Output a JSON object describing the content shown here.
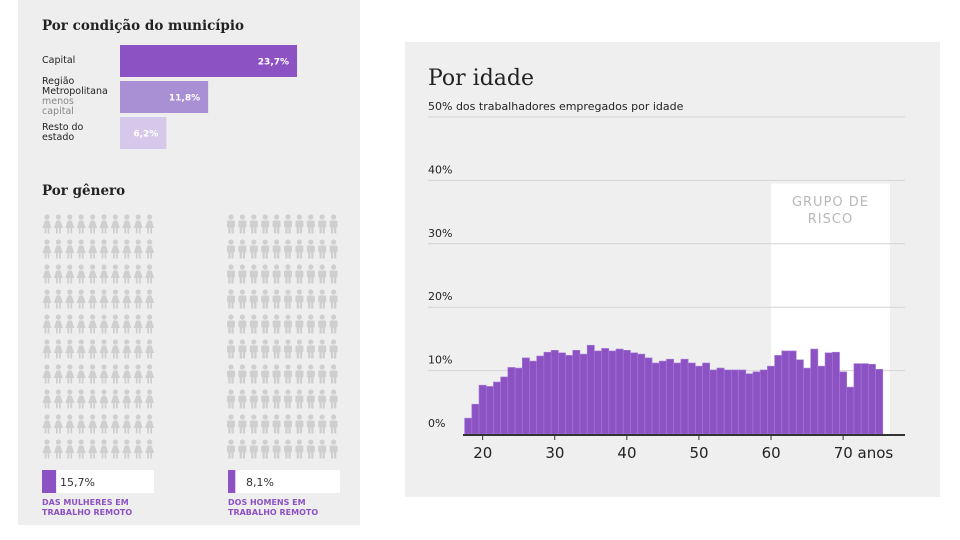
{
  "chart_data": [
    {
      "type": "hbar",
      "title": "Por condição do município",
      "categories": [
        "Capital",
        "Região Metropolitana",
        "Resto do estado"
      ],
      "category_sublabels": [
        null,
        "menos capital",
        null
      ],
      "values": [
        23.7,
        11.8,
        6.2
      ],
      "value_labels": [
        "23,7%",
        "11,8%",
        "6,2%"
      ],
      "colors": [
        "#8c52c4",
        "#a98fd3",
        "#d6c8ea"
      ]
    },
    {
      "type": "pictogram",
      "title": "Por gênero",
      "color": "#8c52c4",
      "empty_color": "#cfcfcf",
      "series": [
        {
          "name": "DAS MULHERES EM TRABALHO REMOTO",
          "icon": "female",
          "values": [
            15.7
          ],
          "value_labels": [
            "15,7%"
          ]
        },
        {
          "name": "DOS HOMENS EM TRABALHO REMOTO",
          "icon": "male",
          "values": [
            8.1
          ],
          "value_labels": [
            "8,1%"
          ]
        }
      ]
    },
    {
      "type": "histogram",
      "title": "Por idade",
      "subtitle": "50% dos trabalhadores empregados por idade",
      "color": "#8c52c4",
      "x": [
        18,
        19,
        20,
        21,
        22,
        23,
        24,
        25,
        26,
        27,
        28,
        29,
        30,
        31,
        32,
        33,
        34,
        35,
        36,
        37,
        38,
        39,
        40,
        41,
        42,
        43,
        44,
        45,
        46,
        47,
        48,
        49,
        50,
        51,
        52,
        53,
        54,
        55,
        56,
        57,
        58,
        59,
        60,
        61,
        62,
        63,
        64,
        65,
        66,
        67,
        68,
        69,
        70,
        71,
        72,
        73,
        74,
        75
      ],
      "values": [
        2.5,
        4.7,
        7.7,
        7.5,
        8.2,
        9.0,
        10.5,
        10.4,
        12.0,
        11.5,
        12.3,
        12.9,
        13.2,
        12.8,
        12.4,
        13.2,
        12.6,
        14.0,
        13.1,
        13.5,
        13.1,
        13.4,
        13.2,
        12.8,
        12.6,
        12.0,
        11.2,
        11.5,
        11.8,
        11.2,
        11.8,
        11.2,
        10.7,
        11.2,
        10.1,
        10.4,
        10.1,
        10.1,
        10.1,
        9.5,
        9.8,
        10.1,
        10.7,
        12.4,
        13.1,
        13.1,
        11.7,
        10.4,
        13.4,
        10.7,
        12.8,
        12.9,
        9.8,
        7.4,
        11.1,
        11.1,
        11.0,
        10.2
      ],
      "xlim": [
        17,
        79
      ],
      "ylim": [
        0,
        50
      ],
      "xticks": [
        20,
        30,
        40,
        50,
        60,
        {
          "value": 70,
          "label": "70 anos"
        }
      ],
      "yticks": [
        {
          "value": 0,
          "label": "0%"
        },
        {
          "value": 10,
          "label": "10%"
        },
        {
          "value": 20,
          "label": "20%"
        },
        {
          "value": 30,
          "label": "30%"
        },
        {
          "value": 40,
          "label": "40%"
        }
      ],
      "grid": true,
      "band": {
        "label": "GRUPO DE RISCO",
        "x": [
          60,
          76.5
        ],
        "ytop": 39.5
      }
    }
  ]
}
